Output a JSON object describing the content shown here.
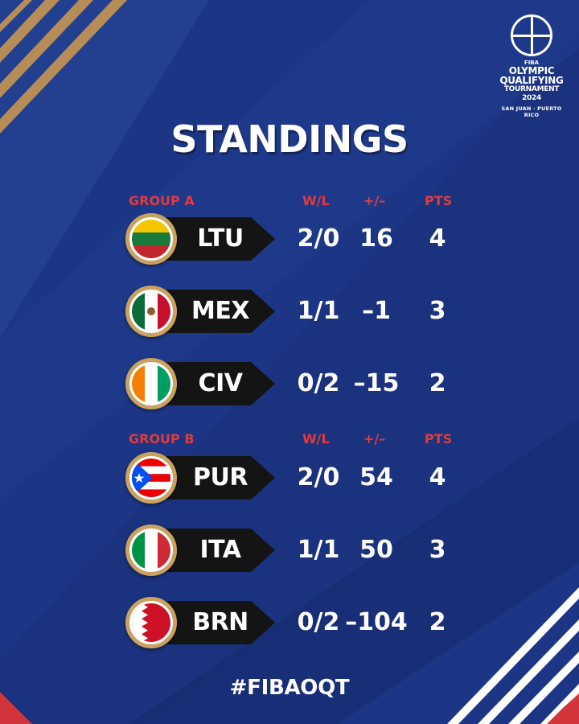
{
  "brand": {
    "fiba": "FIBA",
    "line1": "OLYMPIC",
    "line2": "QUALIFYING",
    "line3": "TOURNAMENT 2024",
    "place": "SAN JUAN · PUERTO RICO"
  },
  "title": "STANDINGS",
  "groups": [
    {
      "name": "GROUP A",
      "headers": {
        "wl": "W/L",
        "pm": "+/–",
        "pts": "PTS"
      },
      "teams": [
        {
          "code": "LTU",
          "wl": "2/0",
          "pm": "16",
          "pts": "4",
          "flag": "lithuania-flag-icon"
        },
        {
          "code": "MEX",
          "wl": "1/1",
          "pm": "–1",
          "pts": "3",
          "flag": "mexico-flag-icon"
        },
        {
          "code": "CIV",
          "wl": "0/2",
          "pm": "–15",
          "pts": "2",
          "flag": "ivory-coast-flag-icon"
        }
      ]
    },
    {
      "name": "GROUP B",
      "headers": {
        "wl": "W/L",
        "pm": "+/–",
        "pts": "PTS"
      },
      "teams": [
        {
          "code": "PUR",
          "wl": "2/0",
          "pm": "54",
          "pts": "4",
          "flag": "puerto-rico-flag-icon"
        },
        {
          "code": "ITA",
          "wl": "1/1",
          "pm": "50",
          "pts": "3",
          "flag": "italy-flag-icon"
        },
        {
          "code": "BRN",
          "wl": "0/2",
          "pm": "–104",
          "pts": "2",
          "flag": "bahrain-flag-icon"
        }
      ]
    }
  ],
  "hashtag": "#FIBAOQT",
  "colors": {
    "background": "#1d3585",
    "accent_red": "#e23b3b",
    "gold": "#c9a25f",
    "plate": "#141414"
  }
}
